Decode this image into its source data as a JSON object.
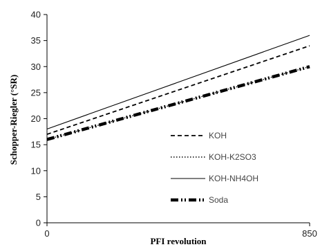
{
  "chart_data": {
    "type": "line",
    "title": "",
    "xlabel": "PFI revolution",
    "ylabel": "Schopper-Riegler (°SR)",
    "xlim": [
      0,
      850
    ],
    "ylim": [
      0,
      40
    ],
    "x_ticks": [
      "0",
      "850"
    ],
    "y_ticks": [
      "0",
      "5",
      "10",
      "15",
      "20",
      "25",
      "30",
      "35",
      "40"
    ],
    "grid": false,
    "legend_position": "bottom-right",
    "x": [
      0,
      850
    ],
    "series": [
      {
        "name": "KOH",
        "values": [
          17,
          34
        ],
        "style": "dashed",
        "color": "#000000"
      },
      {
        "name": "KOH-K2SO3",
        "values": [
          16,
          30
        ],
        "style": "dotted",
        "color": "#000000"
      },
      {
        "name": "KOH-NH4OH",
        "values": [
          18,
          36
        ],
        "style": "solid",
        "color": "#000000"
      },
      {
        "name": "Soda",
        "values": [
          16,
          30
        ],
        "style": "dash-dot-dot",
        "color": "#000000"
      }
    ]
  }
}
